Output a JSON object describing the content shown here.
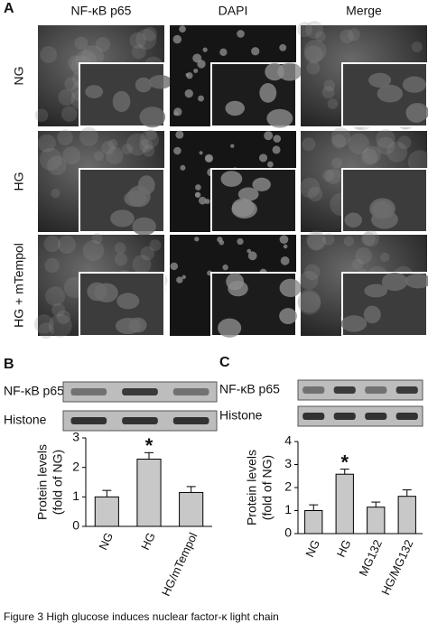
{
  "panel_a": {
    "label": "A",
    "columns": [
      "NF-κB p65",
      "DAPI",
      "Merge"
    ],
    "rows": [
      "NG",
      "HG",
      "HG + mTempol"
    ]
  },
  "chart_data": [
    {
      "type": "bar",
      "panel_label": "B",
      "blot_labels": [
        "NF-κB p65",
        "Histone"
      ],
      "y_label": [
        "Protein levels",
        "(fold of NG)"
      ],
      "categories": [
        "NG",
        "HG",
        "HG/mTempol"
      ],
      "values": [
        1.0,
        2.28,
        1.15
      ],
      "errors": [
        0.22,
        0.22,
        0.2
      ],
      "color": "#c8c8c8",
      "ylim": [
        0,
        3
      ],
      "yticks": [
        0,
        1,
        2,
        3
      ],
      "annotations": [
        {
          "category": "HG",
          "text": "*"
        }
      ]
    },
    {
      "type": "bar",
      "panel_label": "C",
      "blot_labels": [
        "NF-κB p65",
        "Histone"
      ],
      "y_label": [
        "Protein levels",
        "(fold of NG)"
      ],
      "categories": [
        "NG",
        "HG",
        "MG132",
        "HG/MG132"
      ],
      "values": [
        1.0,
        2.58,
        1.15,
        1.62
      ],
      "errors": [
        0.25,
        0.22,
        0.22,
        0.28
      ],
      "color": "#c8c8c8",
      "ylim": [
        0,
        4
      ],
      "yticks": [
        0,
        1,
        2,
        3,
        4
      ],
      "annotations": [
        {
          "category": "HG",
          "text": "*"
        }
      ]
    }
  ],
  "caption": "Figure 3  High glucose induces nuclear factor-κ light chain"
}
